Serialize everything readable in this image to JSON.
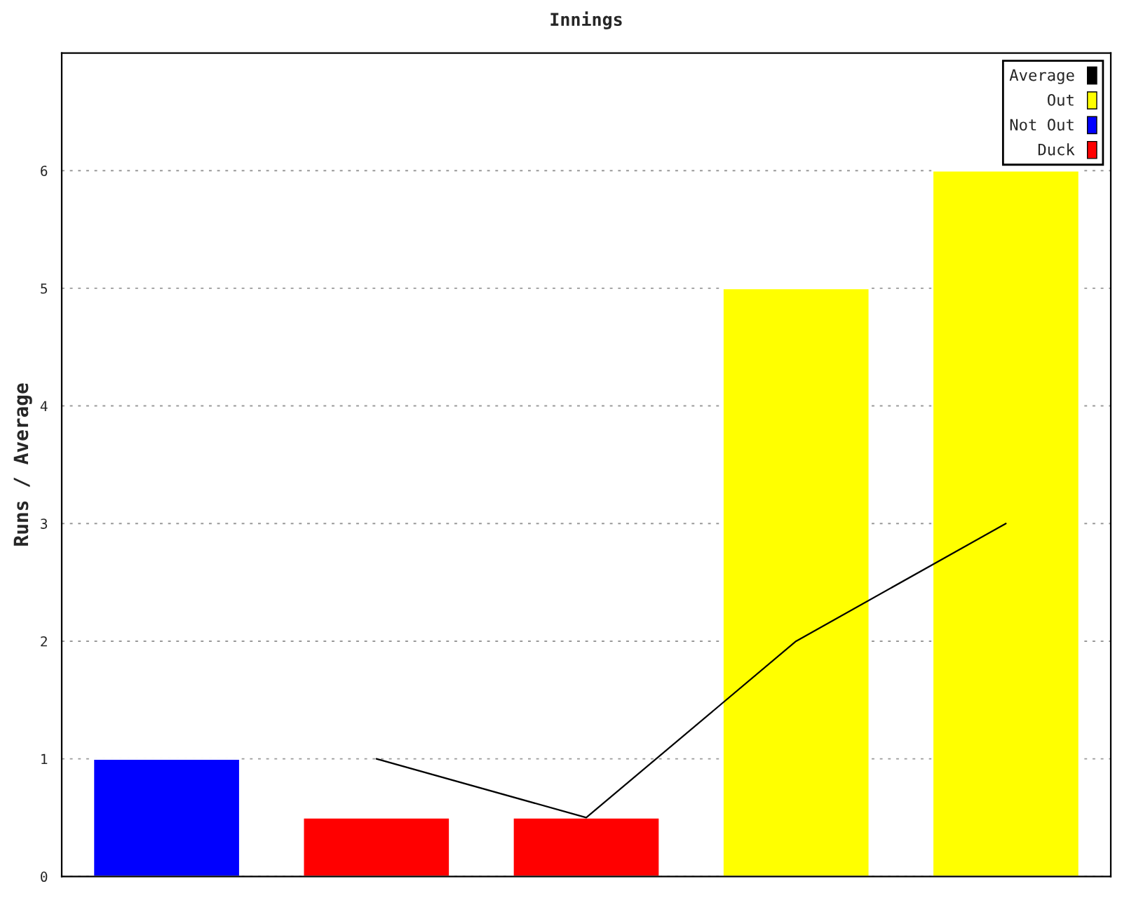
{
  "chart_data": {
    "type": "bar",
    "title": "Innings",
    "ylabel": "Runs / Average",
    "categories": [
      null,
      null,
      null,
      null,
      null
    ],
    "series": [
      {
        "name": "Average",
        "type": "line",
        "color": "#000000",
        "values": [
          null,
          1,
          0.5,
          2,
          3
        ]
      },
      {
        "name": "Out",
        "color": "#ffff00",
        "values": [
          null,
          null,
          null,
          5,
          6
        ]
      },
      {
        "name": "Not Out",
        "color": "#0000ff",
        "values": [
          1,
          null,
          null,
          null,
          null
        ]
      },
      {
        "name": "Duck",
        "color": "#ff0000",
        "values": [
          null,
          0.5,
          0.5,
          null,
          null
        ]
      }
    ],
    "ylim": [
      0,
      7
    ],
    "yticks": [
      0,
      1,
      2,
      3,
      4,
      5,
      6
    ],
    "grid": "y",
    "legend": "top right",
    "line_style": "solid",
    "marker": "none"
  }
}
